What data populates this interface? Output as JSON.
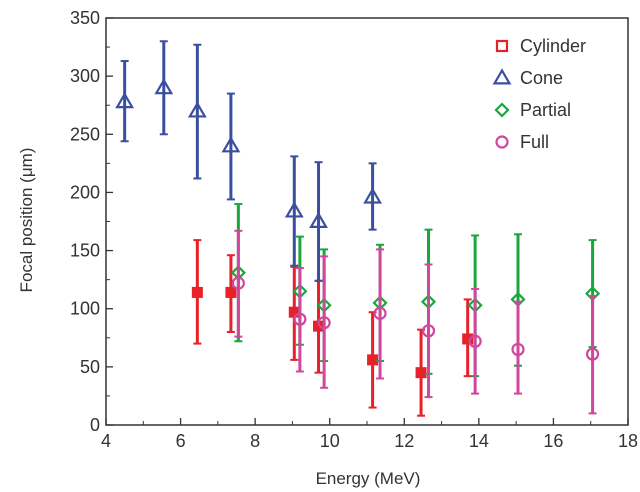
{
  "chart_data": {
    "type": "scatter",
    "xlabel": "Energy (MeV)",
    "ylabel": "Focal position (μm)",
    "xlim": [
      4,
      18
    ],
    "ylim": [
      0,
      350
    ],
    "xticks": [
      4,
      6,
      8,
      10,
      12,
      14,
      16,
      18
    ],
    "yticks": [
      0,
      50,
      100,
      150,
      200,
      250,
      300,
      350
    ],
    "grid": false,
    "legend_position": "top-right",
    "series": [
      {
        "name": "Cylinder",
        "marker": "square",
        "color": "#e8202a",
        "points": [
          {
            "x": 6.45,
            "y": 114,
            "lo": 70,
            "hi": 159
          },
          {
            "x": 7.35,
            "y": 114,
            "lo": 80,
            "hi": 146
          },
          {
            "x": 9.05,
            "y": 97,
            "lo": 56,
            "hi": 136
          },
          {
            "x": 9.7,
            "y": 85,
            "lo": 45,
            "hi": 124
          },
          {
            "x": 11.15,
            "y": 56,
            "lo": 15,
            "hi": 97
          },
          {
            "x": 12.45,
            "y": 45,
            "lo": 8,
            "hi": 82
          },
          {
            "x": 13.7,
            "y": 74,
            "lo": 42,
            "hi": 108
          }
        ]
      },
      {
        "name": "Cone",
        "marker": "triangle",
        "color": "#3b4fa0",
        "points": [
          {
            "x": 4.5,
            "y": 278,
            "lo": 244,
            "hi": 313
          },
          {
            "x": 5.55,
            "y": 290,
            "lo": 250,
            "hi": 330
          },
          {
            "x": 6.45,
            "y": 270,
            "lo": 212,
            "hi": 327
          },
          {
            "x": 7.35,
            "y": 240,
            "lo": 194,
            "hi": 285
          },
          {
            "x": 9.05,
            "y": 184,
            "lo": 137,
            "hi": 231
          },
          {
            "x": 9.7,
            "y": 175,
            "lo": 124,
            "hi": 226
          },
          {
            "x": 11.15,
            "y": 196,
            "lo": 168,
            "hi": 225
          }
        ]
      },
      {
        "name": "Partial",
        "marker": "diamond",
        "color": "#1aa63c",
        "points": [
          {
            "x": 7.55,
            "y": 131,
            "lo": 72,
            "hi": 190
          },
          {
            "x": 9.2,
            "y": 115,
            "lo": 69,
            "hi": 162
          },
          {
            "x": 9.85,
            "y": 103,
            "lo": 55,
            "hi": 151
          },
          {
            "x": 11.35,
            "y": 105,
            "lo": 55,
            "hi": 155
          },
          {
            "x": 12.65,
            "y": 106,
            "lo": 44,
            "hi": 168
          },
          {
            "x": 13.9,
            "y": 103,
            "lo": 42,
            "hi": 163
          },
          {
            "x": 15.05,
            "y": 108,
            "lo": 51,
            "hi": 164
          },
          {
            "x": 17.05,
            "y": 113,
            "lo": 67,
            "hi": 159
          }
        ]
      },
      {
        "name": "Full",
        "marker": "circle",
        "color": "#d1479e",
        "points": [
          {
            "x": 7.55,
            "y": 122,
            "lo": 76,
            "hi": 167
          },
          {
            "x": 9.2,
            "y": 91,
            "lo": 46,
            "hi": 135
          },
          {
            "x": 9.85,
            "y": 88,
            "lo": 32,
            "hi": 145
          },
          {
            "x": 11.35,
            "y": 96,
            "lo": 40,
            "hi": 151
          },
          {
            "x": 12.65,
            "y": 81,
            "lo": 24,
            "hi": 138
          },
          {
            "x": 13.9,
            "y": 72,
            "lo": 27,
            "hi": 117
          },
          {
            "x": 15.05,
            "y": 65,
            "lo": 27,
            "hi": 106
          },
          {
            "x": 17.05,
            "y": 61,
            "lo": 10,
            "hi": 111
          }
        ]
      }
    ]
  }
}
